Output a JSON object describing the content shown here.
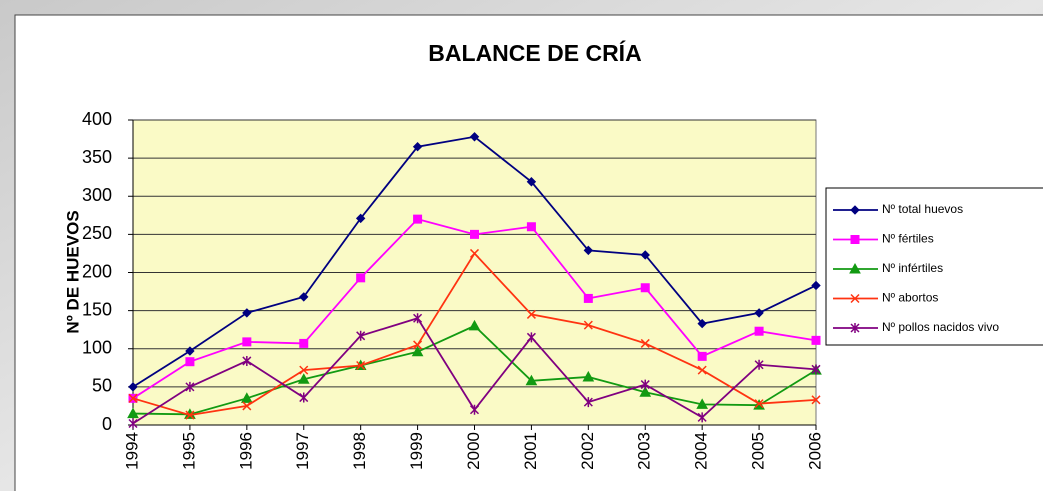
{
  "chart_data": {
    "type": "line",
    "title": "BALANCE DE CRÍA",
    "y_label": "Nº DE HUEVOS",
    "categories": [
      "1994",
      "1995",
      "1996",
      "1997",
      "1998",
      "1999",
      "2000",
      "2001",
      "2002",
      "2003",
      "2004",
      "2005",
      "2006"
    ],
    "series": [
      {
        "name": "Nº total huevos",
        "color": "#000080",
        "marker": "diamond",
        "values": [
          50,
          97,
          147,
          168,
          271,
          365,
          378,
          319,
          229,
          223,
          133,
          147,
          183
        ]
      },
      {
        "name": "Nº fértiles",
        "color": "#ff00ff",
        "marker": "square",
        "values": [
          35,
          83,
          109,
          107,
          193,
          270,
          250,
          260,
          166,
          180,
          90,
          123,
          111
        ]
      },
      {
        "name": "Nº infértiles",
        "color": "#129a12",
        "marker": "triangle",
        "values": [
          15,
          14,
          35,
          60,
          78,
          96,
          130,
          58,
          63,
          43,
          27,
          26,
          72
        ]
      },
      {
        "name": "Nº abortos",
        "color": "#ff3311",
        "marker": "x",
        "values": [
          35,
          13,
          25,
          72,
          78,
          105,
          225,
          145,
          131,
          107,
          72,
          28,
          33
        ]
      },
      {
        "name": "Nº pollos nacidos vivo",
        "color": "#800080",
        "marker": "star",
        "values": [
          2,
          50,
          84,
          36,
          117,
          140,
          20,
          115,
          30,
          53,
          10,
          79,
          73
        ]
      }
    ],
    "ylim": [
      0,
      400
    ],
    "yticks": [
      0,
      50,
      100,
      150,
      200,
      250,
      300,
      350,
      400
    ],
    "grid": true,
    "legend": "right",
    "plot_background": "#fafac6"
  }
}
